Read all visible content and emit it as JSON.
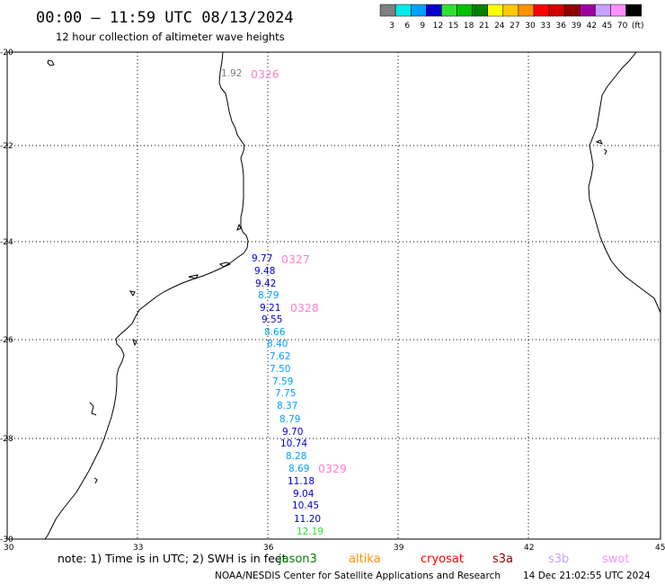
{
  "header": {
    "title": "00:00 – 11:59 UTC 08/13/2024",
    "subtitle": "12 hour collection of altimeter wave heights"
  },
  "colorbar": {
    "colors": [
      "#808080",
      "#00eaea",
      "#00a0ff",
      "#0000d0",
      "#30e030",
      "#00c000",
      "#008000",
      "#ffff00",
      "#ffc800",
      "#ff9000",
      "#ff0000",
      "#d00000",
      "#900000",
      "#a000a0",
      "#c8a0ff",
      "#ff90ff",
      "#000000"
    ],
    "labels": [
      "3",
      "6",
      "9",
      "12",
      "15",
      "18",
      "21",
      "24",
      "27",
      "30",
      "33",
      "36",
      "39",
      "42",
      "45",
      "70",
      "(ft)"
    ]
  },
  "map": {
    "lat_range": [
      -30,
      -20
    ],
    "lon_range": [
      30,
      45
    ],
    "lat_ticks": [
      "-20",
      "-22",
      "-24",
      "-26",
      "-28",
      "-30"
    ],
    "lon_ticks": [
      "30",
      "33",
      "36",
      "39",
      "42",
      "45"
    ]
  },
  "pass_labels": [
    {
      "text": "0326",
      "color": "#ff80d0"
    },
    {
      "text": "0327",
      "color": "#ff80d0"
    },
    {
      "text": "0328",
      "color": "#ff80d0"
    },
    {
      "text": "0329",
      "color": "#ff80d0"
    }
  ],
  "wave_heights": [
    {
      "value": "1.92",
      "color": "#808080"
    },
    {
      "value": "9.77",
      "color": "#0000d0"
    },
    {
      "value": "9.48",
      "color": "#0000d0"
    },
    {
      "value": "9.42",
      "color": "#0000d0"
    },
    {
      "value": "8.79",
      "color": "#00a0ff"
    },
    {
      "value": "9.21",
      "color": "#0000d0"
    },
    {
      "value": "9.55",
      "color": "#0000d0"
    },
    {
      "value": "8.66",
      "color": "#00a0ff"
    },
    {
      "value": "8.40",
      "color": "#00a0ff"
    },
    {
      "value": "7.62",
      "color": "#00a0ff"
    },
    {
      "value": "7.50",
      "color": "#00a0ff"
    },
    {
      "value": "7.59",
      "color": "#00a0ff"
    },
    {
      "value": "7.75",
      "color": "#00a0ff"
    },
    {
      "value": "8.37",
      "color": "#00a0ff"
    },
    {
      "value": "8.79",
      "color": "#00a0ff"
    },
    {
      "value": "9.70",
      "color": "#0000d0"
    },
    {
      "value": "10.74",
      "color": "#0000d0"
    },
    {
      "value": "8.28",
      "color": "#00a0ff"
    },
    {
      "value": "8.69",
      "color": "#00a0ff"
    },
    {
      "value": "11.18",
      "color": "#0000d0"
    },
    {
      "value": "9.04",
      "color": "#0000d0"
    },
    {
      "value": "10.45",
      "color": "#0000d0"
    },
    {
      "value": "11.20",
      "color": "#0000d0"
    },
    {
      "value": "12.19",
      "color": "#30e030"
    }
  ],
  "note": {
    "text": "note: 1) Time is in UTC; 2) SWH is in feet"
  },
  "satellite_legend": [
    {
      "name": "jason3",
      "color": "#008000"
    },
    {
      "name": "altika",
      "color": "#ff9000"
    },
    {
      "name": "cryosat",
      "color": "#ff0000"
    },
    {
      "name": "s3a",
      "color": "#900000"
    },
    {
      "name": "s3b",
      "color": "#c8a0ff"
    },
    {
      "name": "swot",
      "color": "#ff90ff"
    }
  ],
  "footer": {
    "credit": "NOAA/NESDIS Center for Satellite Applications and Research",
    "generated": "14 Dec 21:02:55 UTC 2024"
  }
}
